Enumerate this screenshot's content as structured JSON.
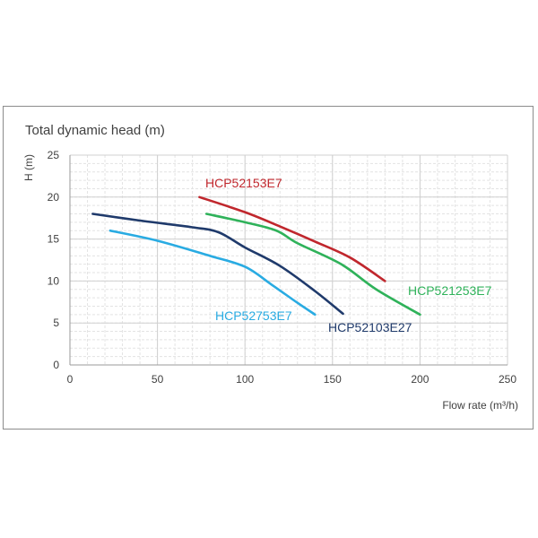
{
  "chart_data": {
    "type": "line",
    "title": "Total dynamic head (m)",
    "xlabel": "Flow rate (m³/h)",
    "ylabel": "H (m)",
    "xlim": [
      0,
      250
    ],
    "ylim": [
      0,
      25
    ],
    "xticks": [
      "0",
      "50",
      "100",
      "150",
      "200",
      "250"
    ],
    "yticks": [
      "0",
      "5",
      "10",
      "15",
      "20",
      "25"
    ],
    "grid": "dashed",
    "legend": "inline labels",
    "series": [
      {
        "name": "HCP52153E7",
        "color": "#c0272d",
        "x": [
          74,
          100,
          120,
          140,
          160,
          180
        ],
        "y": [
          20.0,
          18.2,
          16.5,
          14.7,
          12.8,
          10.0
        ]
      },
      {
        "name": "HCP521253E7",
        "color": "#2fb25a",
        "x": [
          78,
          100,
          118,
          130,
          155,
          175,
          200
        ],
        "y": [
          18.0,
          17.0,
          16.0,
          14.5,
          12.0,
          9.0,
          6.0
        ]
      },
      {
        "name": "HCP52103E27",
        "color": "#1f3a6b",
        "x": [
          13,
          40,
          70,
          85,
          100,
          120,
          140,
          156
        ],
        "y": [
          18.0,
          17.2,
          16.4,
          15.8,
          14.0,
          11.8,
          8.8,
          6.1
        ]
      },
      {
        "name": "HCP52753E7",
        "color": "#29abe2",
        "x": [
          23,
          50,
          80,
          100,
          115,
          130,
          140
        ],
        "y": [
          16.0,
          14.8,
          13.0,
          11.7,
          9.6,
          7.4,
          6.0
        ]
      }
    ],
    "annotations": [
      {
        "text": "HCP52153E7",
        "color": "#c0272d"
      },
      {
        "text": "HCP521253E7",
        "color": "#2fb25a"
      },
      {
        "text": "HCP52103E27",
        "color": "#1f3a6b"
      },
      {
        "text": "HCP52753E7",
        "color": "#29abe2"
      }
    ]
  }
}
